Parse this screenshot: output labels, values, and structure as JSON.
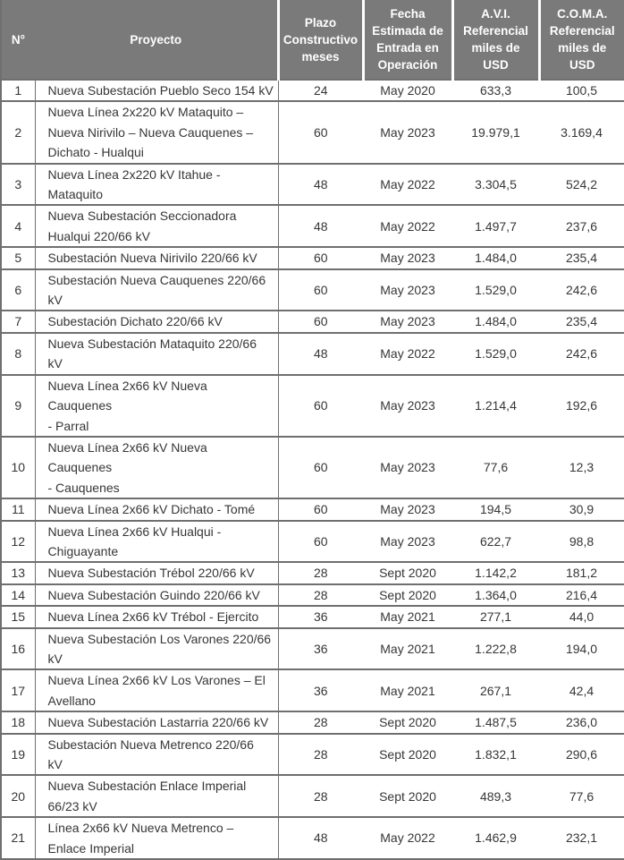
{
  "colors": {
    "header_bg": "#7a7a7a",
    "header_text": "#ffffff",
    "border": "#6f6f6f",
    "body_text": "#363636"
  },
  "table": {
    "columns": [
      {
        "key": "num",
        "label": "N°"
      },
      {
        "key": "proyecto",
        "label": "Proyecto"
      },
      {
        "key": "plazo",
        "label": "Plazo\nConstructivo\nmeses"
      },
      {
        "key": "fecha",
        "label": "Fecha\nEstimada de\nEntrada en\nOperación"
      },
      {
        "key": "avi",
        "label": "A.V.I.\nReferencial\nmiles de\nUSD"
      },
      {
        "key": "coma",
        "label": "C.O.M.A.\nReferencial\nmiles de\nUSD"
      }
    ],
    "rows": [
      {
        "num": "1",
        "proyecto": "Nueva Subestación Pueblo Seco 154 kV",
        "plazo": "24",
        "fecha": "May 2020",
        "avi": "633,3",
        "coma": "100,5"
      },
      {
        "num": "2",
        "proyecto": "Nueva Línea 2x220 kV Mataquito –\nNueva Nirivilo – Nueva Cauquenes –\nDichato - Hualqui",
        "plazo": "60",
        "fecha": "May 2023",
        "avi": "19.979,1",
        "coma": "3.169,4"
      },
      {
        "num": "3",
        "proyecto": "Nueva Línea 2x220 kV Itahue -\nMataquito",
        "plazo": "48",
        "fecha": "May 2022",
        "avi": "3.304,5",
        "coma": "524,2"
      },
      {
        "num": "4",
        "proyecto": "Nueva Subestación Seccionadora\nHualqui 220/66 kV",
        "plazo": "48",
        "fecha": "May 2022",
        "avi": "1.497,7",
        "coma": "237,6"
      },
      {
        "num": "5",
        "proyecto": "Subestación Nueva Nirivilo 220/66 kV",
        "plazo": "60",
        "fecha": "May 2023",
        "avi": "1.484,0",
        "coma": "235,4"
      },
      {
        "num": "6",
        "proyecto": "Subestación Nueva Cauquenes 220/66\nkV",
        "plazo": "60",
        "fecha": "May 2023",
        "avi": "1.529,0",
        "coma": "242,6"
      },
      {
        "num": "7",
        "proyecto": "Subestación Dichato 220/66 kV",
        "plazo": "60",
        "fecha": "May 2023",
        "avi": "1.484,0",
        "coma": "235,4"
      },
      {
        "num": "8",
        "proyecto": "Nueva Subestación Mataquito 220/66\nkV",
        "plazo": "48",
        "fecha": "May 2022",
        "avi": "1.529,0",
        "coma": "242,6"
      },
      {
        "num": "9",
        "proyecto": "Nueva Línea 2x66 kV Nueva Cauquenes\n- Parral",
        "plazo": "60",
        "fecha": "May 2023",
        "avi": "1.214,4",
        "coma": "192,6"
      },
      {
        "num": "10",
        "proyecto": "Nueva Línea 2x66 kV Nueva Cauquenes\n- Cauquenes",
        "plazo": "60",
        "fecha": "May 2023",
        "avi": "77,6",
        "coma": "12,3"
      },
      {
        "num": "11",
        "proyecto": "Nueva Línea 2x66 kV Dichato - Tomé",
        "plazo": "60",
        "fecha": "May 2023",
        "avi": "194,5",
        "coma": "30,9"
      },
      {
        "num": "12",
        "proyecto": "Nueva Línea 2x66 kV Hualqui -\nChiguayante",
        "plazo": "60",
        "fecha": "May 2023",
        "avi": "622,7",
        "coma": "98,8"
      },
      {
        "num": "13",
        "proyecto": "Nueva Subestación Trébol 220/66 kV",
        "plazo": "28",
        "fecha": "Sept 2020",
        "avi": "1.142,2",
        "coma": "181,2"
      },
      {
        "num": "14",
        "proyecto": "Nueva Subestación Guindo 220/66 kV",
        "plazo": "28",
        "fecha": "Sept 2020",
        "avi": "1.364,0",
        "coma": "216,4"
      },
      {
        "num": "15",
        "proyecto": "Nueva Línea 2x66 kV Trébol - Ejercito",
        "plazo": "36",
        "fecha": "May 2021",
        "avi": "277,1",
        "coma": "44,0"
      },
      {
        "num": "16",
        "proyecto": "Nueva Subestación Los Varones 220/66\nkV",
        "plazo": "36",
        "fecha": "May 2021",
        "avi": "1.222,8",
        "coma": "194,0"
      },
      {
        "num": "17",
        "proyecto": "Nueva Línea 2x66 kV Los Varones – El\nAvellano",
        "plazo": "36",
        "fecha": "May 2021",
        "avi": "267,1",
        "coma": "42,4"
      },
      {
        "num": "18",
        "proyecto": "Nueva Subestación Lastarria 220/66 kV",
        "plazo": "28",
        "fecha": "Sept 2020",
        "avi": "1.487,5",
        "coma": "236,0"
      },
      {
        "num": "19",
        "proyecto": "Subestación Nueva Metrenco 220/66\nkV",
        "plazo": "28",
        "fecha": "Sept 2020",
        "avi": "1.832,1",
        "coma": "290,6"
      },
      {
        "num": "20",
        "proyecto": "Nueva Subestación Enlace Imperial\n66/23 kV",
        "plazo": "28",
        "fecha": "Sept 2020",
        "avi": "489,3",
        "coma": "77,6"
      },
      {
        "num": "21",
        "proyecto": "Línea 2x66 kV Nueva Metrenco –\nEnlace Imperial",
        "plazo": "48",
        "fecha": "May 2022",
        "avi": "1.462,9",
        "coma": "232,1"
      }
    ]
  }
}
